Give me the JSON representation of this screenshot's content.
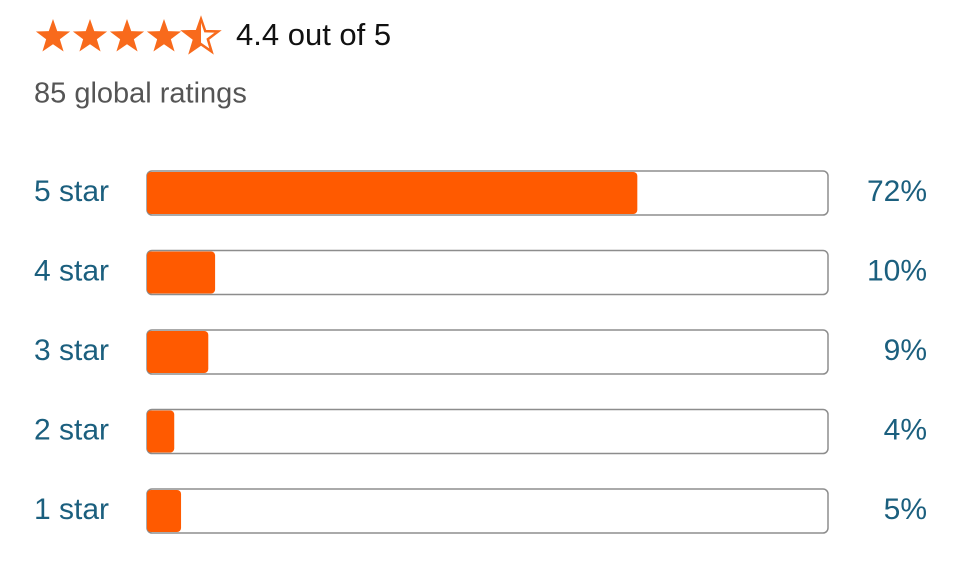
{
  "chart_data": {
    "type": "hbar",
    "title": "4.4 out of 5",
    "subtitle": "85 global ratings",
    "categories": [
      "5 star",
      "4 star",
      "3 star",
      "2 star",
      "1 star"
    ],
    "values": [
      72,
      10,
      9,
      4,
      5
    ],
    "value_labels": [
      "72%",
      "10%",
      "9%",
      "4%",
      "5%"
    ],
    "xlim": [
      0,
      100
    ],
    "color": "#ff5a00"
  }
}
